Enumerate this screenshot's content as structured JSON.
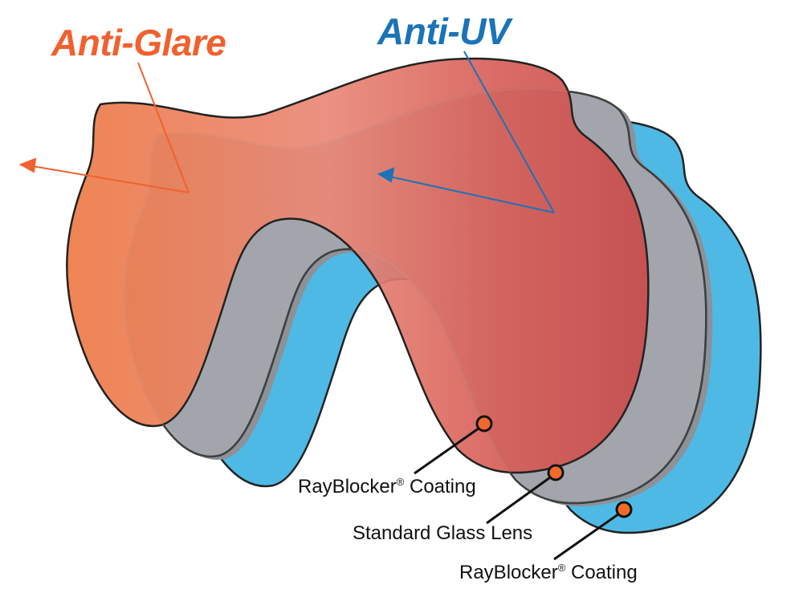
{
  "titles": {
    "anti_glare": "Anti-Glare",
    "anti_uv": "Anti-UV"
  },
  "layers": [
    {
      "name": "RayBlocker",
      "mark": "®",
      "suffix": " Coating",
      "color": "#D9574F"
    },
    {
      "name": "Standard Glass Lens",
      "mark": "",
      "suffix": "",
      "color": "#A3A7AD"
    },
    {
      "name": "RayBlocker",
      "mark": "®",
      "suffix": " Coating",
      "color": "#4FB9E6"
    }
  ],
  "colors": {
    "anti_glare": "#F0612F",
    "anti_uv": "#1B73B8",
    "marker": "#F26A2A"
  }
}
